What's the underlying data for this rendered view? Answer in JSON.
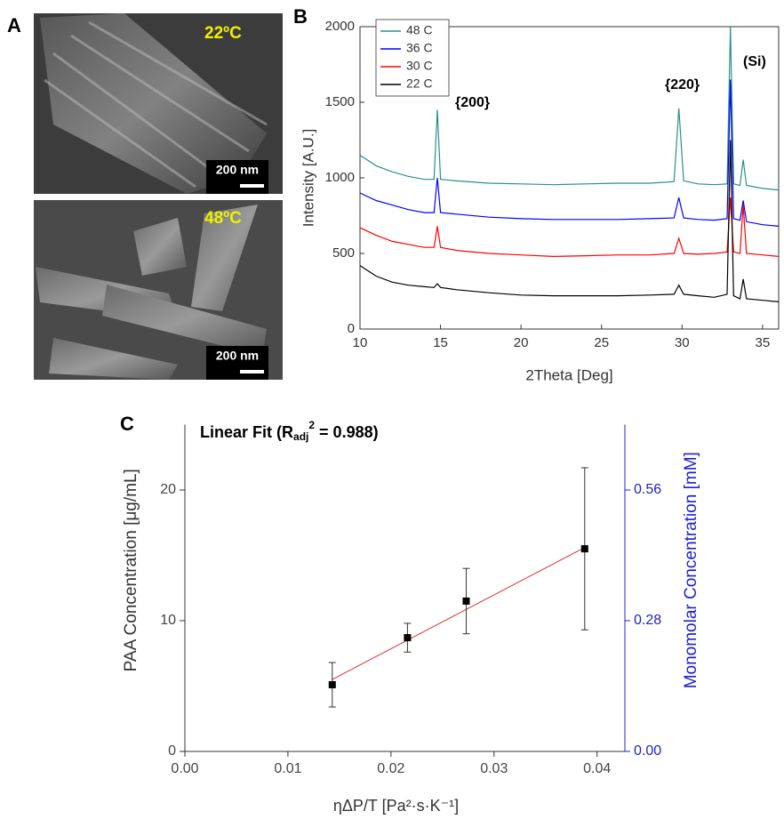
{
  "panel_a": {
    "label": "A",
    "images": [
      {
        "temperature": "22ºC",
        "scale_bar": "200 nm"
      },
      {
        "temperature": "48ºC",
        "scale_bar": "200 nm"
      }
    ]
  },
  "chart_data": [
    {
      "type": "line",
      "panel": "B",
      "xlabel": "2Theta [Deg]",
      "ylabel": "Intensity [A.U.]",
      "annotations": [
        "{200}",
        "{220}",
        "(Si)"
      ],
      "x": [
        10,
        11,
        12,
        13,
        14,
        14.6,
        14.8,
        15.0,
        16,
        18,
        20,
        22,
        24,
        26,
        28,
        29.5,
        29.8,
        30.1,
        31,
        32,
        32.8,
        33.0,
        33.2,
        33.6,
        33.8,
        34.0,
        35,
        36
      ],
      "series": [
        {
          "name": "48 C",
          "color": "#2a8f8a",
          "values": [
            1150,
            1080,
            1040,
            1010,
            990,
            990,
            1450,
            990,
            980,
            965,
            960,
            955,
            960,
            965,
            965,
            975,
            1460,
            980,
            960,
            955,
            960,
            2000,
            960,
            950,
            1120,
            950,
            930,
            920
          ]
        },
        {
          "name": "36 C",
          "color": "#0000ff",
          "values": [
            900,
            850,
            820,
            790,
            770,
            770,
            1000,
            770,
            760,
            740,
            730,
            725,
            725,
            725,
            730,
            735,
            870,
            735,
            725,
            720,
            730,
            1650,
            730,
            720,
            850,
            710,
            690,
            680
          ]
        },
        {
          "name": "30 C",
          "color": "#ff0000",
          "values": [
            670,
            620,
            580,
            560,
            540,
            540,
            680,
            540,
            520,
            500,
            490,
            480,
            485,
            490,
            490,
            500,
            600,
            500,
            495,
            500,
            510,
            870,
            510,
            500,
            820,
            500,
            490,
            480
          ]
        },
        {
          "name": "22 C",
          "color": "#000000",
          "values": [
            420,
            350,
            310,
            290,
            280,
            275,
            300,
            275,
            260,
            240,
            225,
            220,
            220,
            220,
            225,
            230,
            290,
            230,
            220,
            210,
            230,
            1250,
            220,
            200,
            330,
            200,
            190,
            180
          ]
        }
      ],
      "xlim": [
        10,
        36
      ],
      "xticks": [
        10,
        15,
        20,
        25,
        30,
        35
      ],
      "ylim": [
        0,
        2000
      ],
      "yticks": [
        0,
        500,
        1000,
        1500,
        2000
      ],
      "legend": "upper left"
    },
    {
      "type": "scatter",
      "panel": "C",
      "fit_label": {
        "text": "Linear Fit (R",
        "sub": "adj",
        "sup": "2",
        "rest": " = 0.988)"
      },
      "xlabel": "ηΔP/T [Pa²·s·K⁻¹]",
      "ylabel": "PAA Concentration [μg/mL]",
      "y2label": "Monomolar Concentration [mM]",
      "x": [
        0.0143,
        0.0216,
        0.0273,
        0.0388
      ],
      "values": [
        5.1,
        8.7,
        11.5,
        15.5
      ],
      "errors": [
        1.7,
        1.1,
        2.5,
        6.2
      ],
      "color": "#000000",
      "fit": {
        "x": [
          0.0143,
          0.0388
        ],
        "values": [
          5.5,
          15.6
        ],
        "color": "#e03030"
      },
      "xlim": [
        0,
        0.0427
      ],
      "xticks": [
        {
          "value": 0,
          "label": "0.00"
        },
        0.01,
        0.02,
        0.03,
        0.04
      ],
      "ylim": [
        0,
        25
      ],
      "yticks": [
        0,
        10,
        20
      ],
      "y2lim": [
        0,
        0.7
      ],
      "y2ticks": [
        {
          "value": 0,
          "label": "0.00"
        },
        0.28,
        0.56
      ],
      "y2color": "#2020d0"
    }
  ]
}
